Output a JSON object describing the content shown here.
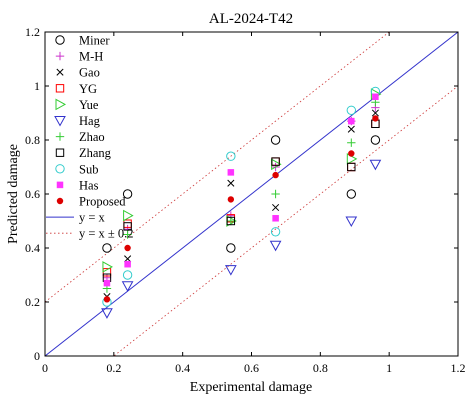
{
  "chart_data": {
    "type": "scatter",
    "title": "AL-2024-T42",
    "xlabel": "Experimental damage",
    "ylabel": "Predicted damage",
    "xlim": [
      0,
      1.2
    ],
    "ylim": [
      0,
      1.2
    ],
    "x_ticks": [
      "0",
      "0.2",
      "0.4",
      "0.6",
      "0.8",
      "1",
      "1.2"
    ],
    "y_ticks": [
      "0",
      "0.2",
      "0.4",
      "0.6",
      "0.8",
      "1",
      "1.2"
    ],
    "grid": false,
    "legend_position": "top-left",
    "series": [
      {
        "name": "Miner",
        "marker": "circle",
        "color": "#000000",
        "x": [
          0.18,
          0.24,
          0.54,
          0.67,
          0.89,
          0.96
        ],
        "y": [
          0.4,
          0.6,
          0.4,
          0.8,
          0.6,
          0.8
        ]
      },
      {
        "name": "M-H",
        "marker": "plus",
        "color": "#cc33cc",
        "x": [
          0.18,
          0.24,
          0.54,
          0.67,
          0.89,
          0.96
        ],
        "y": [
          0.29,
          0.47,
          0.52,
          0.7,
          0.87,
          0.92
        ]
      },
      {
        "name": "Gao",
        "marker": "x",
        "color": "#000000",
        "x": [
          0.18,
          0.24,
          0.54,
          0.67,
          0.89,
          0.96
        ],
        "y": [
          0.22,
          0.36,
          0.64,
          0.55,
          0.84,
          0.9
        ]
      },
      {
        "name": "YG",
        "marker": "square",
        "color": "#ff0000",
        "x": [
          0.18,
          0.24,
          0.54,
          0.67,
          0.89,
          0.96
        ],
        "y": [
          0.31,
          0.49,
          0.51,
          0.72,
          0.7,
          0.86
        ]
      },
      {
        "name": "Yue",
        "marker": "triangle-right",
        "color": "#33cc33",
        "x": [
          0.18,
          0.24,
          0.54,
          0.67,
          0.89,
          0.96
        ],
        "y": [
          0.33,
          0.52,
          0.5,
          0.71,
          0.73,
          0.97
        ]
      },
      {
        "name": "Hag",
        "marker": "triangle-down",
        "color": "#3333cc",
        "x": [
          0.18,
          0.24,
          0.54,
          0.67,
          0.89,
          0.96
        ],
        "y": [
          0.16,
          0.26,
          0.32,
          0.41,
          0.5,
          0.71
        ]
      },
      {
        "name": "Zhao",
        "marker": "plus",
        "color": "#33cc33",
        "x": [
          0.18,
          0.24,
          0.54,
          0.67,
          0.89,
          0.96
        ],
        "y": [
          0.25,
          0.45,
          0.5,
          0.6,
          0.79,
          0.94
        ]
      },
      {
        "name": "Zhang",
        "marker": "square",
        "color": "#000000",
        "x": [
          0.18,
          0.24,
          0.54,
          0.67,
          0.89,
          0.96
        ],
        "y": [
          0.29,
          0.48,
          0.5,
          0.72,
          0.7,
          0.86
        ]
      },
      {
        "name": "Sub",
        "marker": "circle",
        "color": "#33cccc",
        "x": [
          0.18,
          0.24,
          0.54,
          0.67,
          0.89,
          0.96
        ],
        "y": [
          0.2,
          0.3,
          0.74,
          0.46,
          0.91,
          0.98
        ]
      },
      {
        "name": "Has",
        "marker": "filled-square",
        "color": "#ff33ff",
        "x": [
          0.18,
          0.24,
          0.54,
          0.67,
          0.89,
          0.96
        ],
        "y": [
          0.27,
          0.34,
          0.68,
          0.51,
          0.87,
          0.96
        ]
      },
      {
        "name": "Proposed",
        "marker": "filled-circle",
        "color": "#dd0000",
        "x": [
          0.18,
          0.24,
          0.54,
          0.67,
          0.89,
          0.96
        ],
        "y": [
          0.21,
          0.4,
          0.58,
          0.67,
          0.75,
          0.88
        ]
      }
    ],
    "reference_lines": [
      {
        "name": "y = x",
        "style": "solid",
        "color": "#3333cc",
        "offset": 0
      },
      {
        "name": "y = x ± 0.2",
        "style": "dotted",
        "color": "#cc3333",
        "offsets": [
          0.2,
          -0.2
        ]
      }
    ]
  }
}
